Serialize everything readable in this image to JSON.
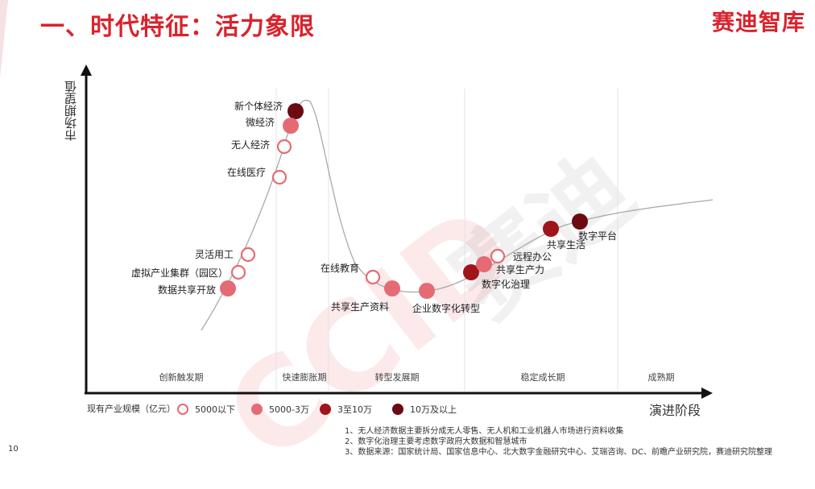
{
  "title": "一、时代特征：活力象限",
  "brand": "赛迪智库",
  "watermark": {
    "left": "CCID",
    "right": "赛迪"
  },
  "axes": {
    "y_label": "市场期望值",
    "x_label": "演进阶段"
  },
  "phases": [
    "创新触发期",
    "快速膨胀期",
    "转型发展期",
    "稳定成长期",
    "成熟期"
  ],
  "items": [
    {
      "label": "新个体经济",
      "phase": "快速膨胀期",
      "scale": "10万及以上"
    },
    {
      "label": "微经济",
      "phase": "快速膨胀期",
      "scale": "5000-3万"
    },
    {
      "label": "无人经济",
      "phase": "快速膨胀期",
      "scale": "5000以下"
    },
    {
      "label": "在线医疗",
      "phase": "快速膨胀期",
      "scale": "5000以下"
    },
    {
      "label": "灵活用工",
      "phase": "创新触发期",
      "scale": "5000以下"
    },
    {
      "label": "虚拟产业集群（园区）",
      "phase": "创新触发期",
      "scale": "5000以下"
    },
    {
      "label": "数据共享开放",
      "phase": "创新触发期",
      "scale": "5000-3万"
    },
    {
      "label": "在线教育",
      "phase": "转型发展期",
      "scale": "5000以下"
    },
    {
      "label": "共享生产资料",
      "phase": "转型发展期",
      "scale": "5000-3万"
    },
    {
      "label": "企业数字化转型",
      "phase": "转型发展期",
      "scale": "5000-3万"
    },
    {
      "label": "数字化治理",
      "phase": "稳定成长期",
      "scale": "3至10万"
    },
    {
      "label": "共享生产力",
      "phase": "稳定成长期",
      "scale": "5000-3万"
    },
    {
      "label": "远程办公",
      "phase": "稳定成长期",
      "scale": "5000以下"
    },
    {
      "label": "共享生活",
      "phase": "稳定成长期",
      "scale": "3至10万"
    },
    {
      "label": "数字平台",
      "phase": "稳定成长期",
      "scale": "10万及以上"
    }
  ],
  "legend": {
    "title": "现有产业规模（亿元）",
    "entries": [
      {
        "label": "5000以下",
        "color": "#e46b74",
        "style": "ring"
      },
      {
        "label": "5000-3万",
        "color": "#e46b74",
        "style": "fill"
      },
      {
        "label": "3至10万",
        "color": "#a0141c",
        "style": "fill"
      },
      {
        "label": "10万及以上",
        "color": "#6b0a10",
        "style": "fill"
      }
    ]
  },
  "notes": [
    "1、无人经济数据主要拆分成无人零售、无人机和工业机器人市场进行资料收集",
    "2、数字化治理主要考虑数字政府大数据和智慧城市",
    "3、数据来源：国家统计局、国家信息中心、北大数字金融研究中心、艾瑞咨询、DC、前瞻产业研究院，赛迪研究院整理"
  ],
  "page_number": "10",
  "colors": {
    "accent": "#d9232d",
    "ring": "#e46b74",
    "fill_light": "#e46b74",
    "fill_mid": "#a0141c",
    "fill_dark": "#6b0a10",
    "curve": "#aaaaaa"
  }
}
